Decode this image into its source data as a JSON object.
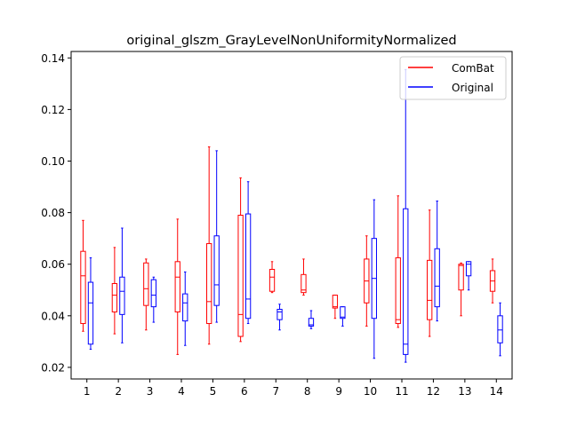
{
  "chart_data": {
    "type": "box",
    "title": "original_glszm_GrayLevelNonUniformityNormalized",
    "xlabel": "",
    "ylabel": "",
    "categories": [
      "1",
      "2",
      "3",
      "4",
      "5",
      "6",
      "7",
      "8",
      "9",
      "10",
      "11",
      "12",
      "13",
      "14"
    ],
    "yticks": [
      0.02,
      0.04,
      0.06,
      0.08,
      0.1,
      0.12,
      0.14
    ],
    "ytick_labels": [
      "0.02",
      "0.04",
      "0.06",
      "0.08",
      "0.10",
      "0.12",
      "0.14"
    ],
    "ylim": [
      0.0155,
      0.1425
    ],
    "xlim": [
      0.5,
      14.5
    ],
    "grid": false,
    "legend_position": "top-right",
    "series": [
      {
        "name": "ComBat",
        "color": "#ff0000",
        "boxes": [
          {
            "whislo": 0.034,
            "q1": 0.037,
            "med": 0.0555,
            "q3": 0.065,
            "whishi": 0.077
          },
          {
            "whislo": 0.033,
            "q1": 0.0415,
            "med": 0.048,
            "q3": 0.0525,
            "whishi": 0.0665
          },
          {
            "whislo": 0.0345,
            "q1": 0.044,
            "med": 0.0505,
            "q3": 0.0605,
            "whishi": 0.062
          },
          {
            "whislo": 0.025,
            "q1": 0.0415,
            "med": 0.055,
            "q3": 0.061,
            "whishi": 0.0775
          },
          {
            "whislo": 0.029,
            "q1": 0.037,
            "med": 0.0455,
            "q3": 0.068,
            "whishi": 0.1055
          },
          {
            "whislo": 0.03,
            "q1": 0.032,
            "med": 0.0405,
            "q3": 0.079,
            "whishi": 0.0935
          },
          {
            "whislo": 0.049,
            "q1": 0.0495,
            "med": 0.055,
            "q3": 0.058,
            "whishi": 0.061
          },
          {
            "whislo": 0.048,
            "q1": 0.049,
            "med": 0.05,
            "q3": 0.056,
            "whishi": 0.062
          },
          {
            "whislo": 0.039,
            "q1": 0.043,
            "med": 0.0435,
            "q3": 0.048,
            "whishi": 0.048
          },
          {
            "whislo": 0.036,
            "q1": 0.045,
            "med": 0.0535,
            "q3": 0.062,
            "whishi": 0.071
          },
          {
            "whislo": 0.0355,
            "q1": 0.037,
            "med": 0.0385,
            "q3": 0.0625,
            "whishi": 0.0865
          },
          {
            "whislo": 0.032,
            "q1": 0.0385,
            "med": 0.046,
            "q3": 0.0615,
            "whishi": 0.081
          },
          {
            "whislo": 0.04,
            "q1": 0.05,
            "med": 0.0595,
            "q3": 0.06,
            "whishi": 0.0605
          },
          {
            "whislo": 0.045,
            "q1": 0.0495,
            "med": 0.0535,
            "q3": 0.0575,
            "whishi": 0.062
          }
        ]
      },
      {
        "name": "Original",
        "color": "#0000ff",
        "boxes": [
          {
            "whislo": 0.027,
            "q1": 0.029,
            "med": 0.045,
            "q3": 0.053,
            "whishi": 0.0625
          },
          {
            "whislo": 0.0295,
            "q1": 0.0405,
            "med": 0.0495,
            "q3": 0.055,
            "whishi": 0.074
          },
          {
            "whislo": 0.0375,
            "q1": 0.0435,
            "med": 0.048,
            "q3": 0.054,
            "whishi": 0.055
          },
          {
            "whislo": 0.0285,
            "q1": 0.038,
            "med": 0.045,
            "q3": 0.0485,
            "whishi": 0.057
          },
          {
            "whislo": 0.0375,
            "q1": 0.044,
            "med": 0.052,
            "q3": 0.071,
            "whishi": 0.104
          },
          {
            "whislo": 0.037,
            "q1": 0.039,
            "med": 0.0465,
            "q3": 0.0795,
            "whishi": 0.092
          },
          {
            "whislo": 0.0345,
            "q1": 0.0385,
            "med": 0.0415,
            "q3": 0.0425,
            "whishi": 0.0445
          },
          {
            "whislo": 0.035,
            "q1": 0.036,
            "med": 0.0365,
            "q3": 0.039,
            "whishi": 0.042
          },
          {
            "whislo": 0.036,
            "q1": 0.039,
            "med": 0.0395,
            "q3": 0.0435,
            "whishi": 0.0435
          },
          {
            "whislo": 0.0235,
            "q1": 0.039,
            "med": 0.0545,
            "q3": 0.07,
            "whishi": 0.085
          },
          {
            "whislo": 0.022,
            "q1": 0.025,
            "med": 0.029,
            "q3": 0.0815,
            "whishi": 0.1355
          },
          {
            "whislo": 0.038,
            "q1": 0.0435,
            "med": 0.0515,
            "q3": 0.066,
            "whishi": 0.0845
          },
          {
            "whislo": 0.05,
            "q1": 0.0555,
            "med": 0.06,
            "q3": 0.061,
            "whishi": 0.061
          },
          {
            "whislo": 0.0245,
            "q1": 0.0295,
            "med": 0.0345,
            "q3": 0.04,
            "whishi": 0.045
          }
        ]
      }
    ]
  }
}
